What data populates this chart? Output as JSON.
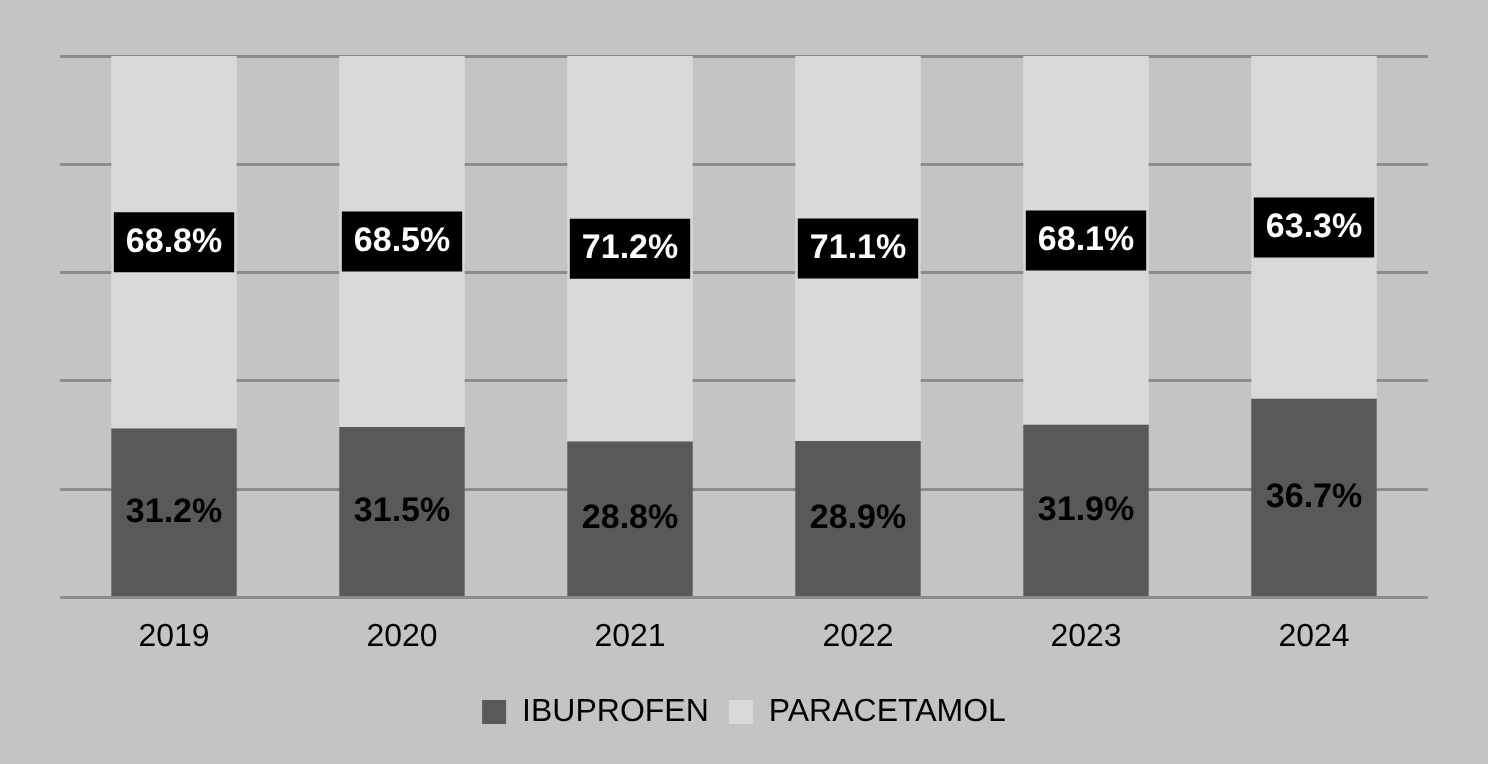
{
  "chart_data": {
    "type": "bar",
    "stacked": true,
    "categories": [
      "2019",
      "2020",
      "2021",
      "2022",
      "2023",
      "2024"
    ],
    "series": [
      {
        "name": "IBUPROFEN",
        "color": "#595959",
        "values": [
          31.2,
          31.5,
          28.8,
          28.9,
          31.9,
          36.7
        ],
        "value_labels": [
          "31.2%",
          "31.5%",
          "28.8%",
          "28.9%",
          "31.9%",
          "36.7%"
        ]
      },
      {
        "name": "PARACETAMOL",
        "color": "#d9d9d9",
        "values": [
          68.8,
          68.5,
          71.2,
          71.1,
          68.1,
          63.3
        ],
        "value_labels": [
          "68.8%",
          "68.5%",
          "71.2%",
          "71.1%",
          "68.1%",
          "63.3%"
        ]
      }
    ],
    "ylim": [
      0,
      100
    ],
    "yticks": [
      0,
      20,
      40,
      60,
      80,
      100
    ],
    "tick_labels": "x",
    "grid": "y",
    "legend": "bottom"
  }
}
